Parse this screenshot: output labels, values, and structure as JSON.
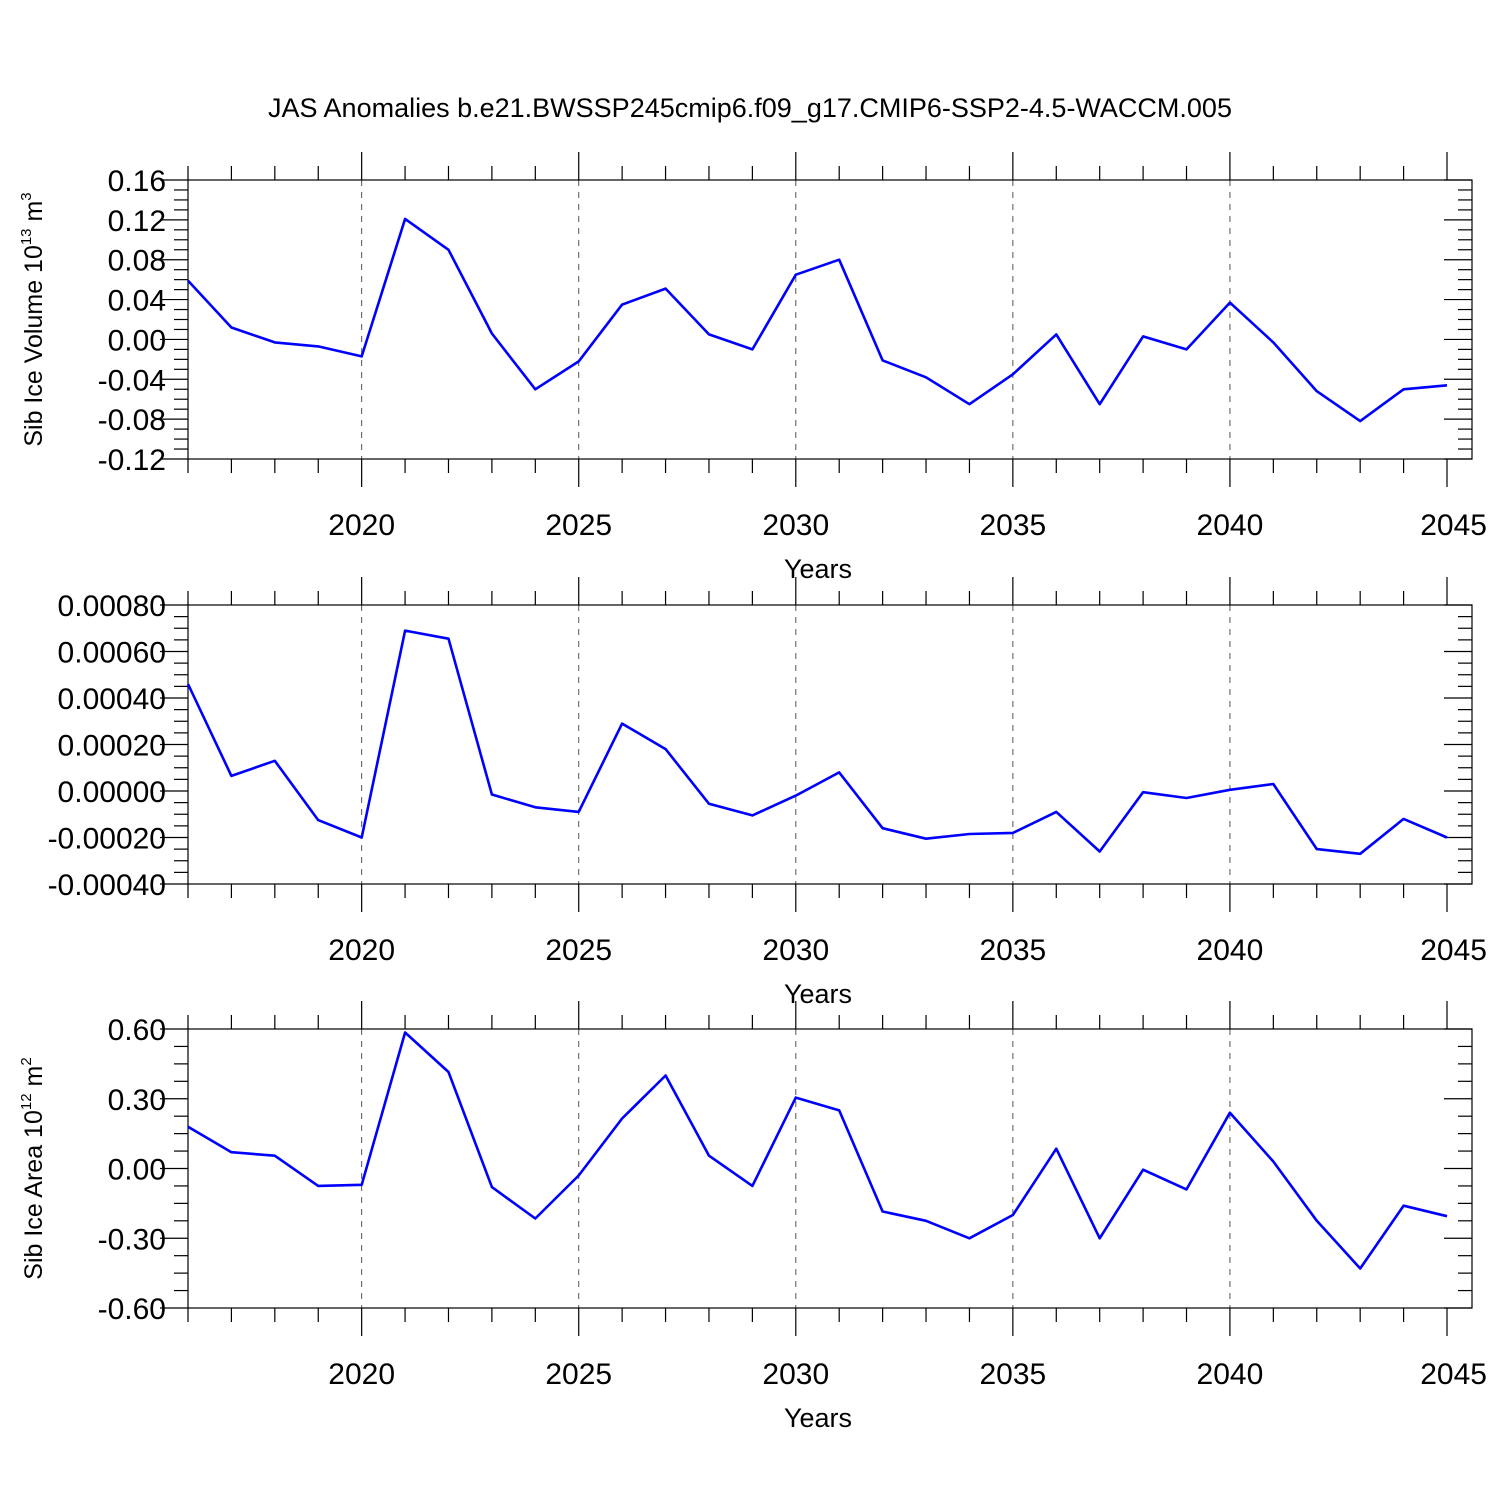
{
  "title": "JAS Anomalies b.e21.BWSSP245cmip6.f09_g17.CMIP6-SSP2-4.5-WACCM.005",
  "colors": {
    "line": "#0000ff",
    "grid": "#555555",
    "axis": "#000000"
  },
  "chart_data": [
    {
      "type": "line",
      "xlabel": "Years",
      "ylabel": "Sib Ice Volume 10",
      "ylabel_exp": "13",
      "ylabel_unit": " m",
      "ylabel_unit_exp": "3",
      "xlim": [
        2016,
        2045
      ],
      "ylim": [
        -0.12,
        0.16
      ],
      "x_ticks": [
        "2020",
        "2025",
        "2030",
        "2035",
        "2040",
        "2045"
      ],
      "y_ticks": [
        "0.16",
        "0.12",
        "0.08",
        "0.04",
        "0.00",
        "-0.04",
        "-0.08",
        "-0.12"
      ],
      "grid": "vertical dashed at major x ticks",
      "x": [
        2016,
        2017,
        2018,
        2019,
        2020,
        2021,
        2022,
        2023,
        2024,
        2025,
        2026,
        2027,
        2028,
        2029,
        2030,
        2031,
        2032,
        2033,
        2034,
        2035,
        2036,
        2037,
        2038,
        2039,
        2040,
        2041,
        2042,
        2043,
        2044,
        2045
      ],
      "values": [
        0.059,
        0.012,
        -0.003,
        -0.007,
        -0.017,
        0.121,
        0.09,
        0.006,
        -0.05,
        -0.022,
        0.035,
        0.051,
        0.005,
        -0.01,
        0.065,
        0.08,
        -0.021,
        -0.038,
        -0.065,
        -0.035,
        0.005,
        -0.065,
        0.003,
        -0.01,
        0.037,
        -0.003,
        -0.052,
        -0.082,
        -0.05,
        -0.046
      ]
    },
    {
      "type": "line",
      "xlabel": "Years",
      "xlim": [
        2016,
        2045
      ],
      "ylim": [
        -0.0004,
        0.0008
      ],
      "x_ticks": [
        "2020",
        "2025",
        "2030",
        "2035",
        "2040",
        "2045"
      ],
      "y_ticks": [
        "0.00080",
        "0.00060",
        "0.00040",
        "0.00020",
        "0.00000",
        "-0.00020",
        "-0.00040"
      ],
      "grid": "vertical dashed at major x ticks",
      "x": [
        2016,
        2017,
        2018,
        2019,
        2020,
        2021,
        2022,
        2023,
        2024,
        2025,
        2026,
        2027,
        2028,
        2029,
        2030,
        2031,
        2032,
        2033,
        2034,
        2035,
        2036,
        2037,
        2038,
        2039,
        2040,
        2041,
        2042,
        2043,
        2044,
        2045
      ],
      "values": [
        0.00046,
        6.5e-05,
        0.00013,
        -0.000125,
        -0.0002,
        0.00069,
        0.000655,
        -1.5e-05,
        -7e-05,
        -9e-05,
        0.00029,
        0.00018,
        -5.5e-05,
        -0.000105,
        -2e-05,
        8e-05,
        -0.00016,
        -0.000205,
        -0.000185,
        -0.00018,
        -9e-05,
        -0.00026,
        -5e-06,
        -3e-05,
        5e-06,
        3e-05,
        -0.00025,
        -0.00027,
        -0.00012,
        -0.0002
      ]
    },
    {
      "type": "line",
      "xlabel": "Years",
      "ylabel": "Sib Ice Area 10",
      "ylabel_exp": "12",
      "ylabel_unit": " m",
      "ylabel_unit_exp": "2",
      "xlim": [
        2016,
        2045
      ],
      "ylim": [
        -0.6,
        0.6
      ],
      "x_ticks": [
        "2020",
        "2025",
        "2030",
        "2035",
        "2040",
        "2045"
      ],
      "y_ticks": [
        "0.60",
        "0.30",
        "0.00",
        "-0.30",
        "-0.60"
      ],
      "grid": "vertical dashed at major x ticks",
      "x": [
        2016,
        2017,
        2018,
        2019,
        2020,
        2021,
        2022,
        2023,
        2024,
        2025,
        2026,
        2027,
        2028,
        2029,
        2030,
        2031,
        2032,
        2033,
        2034,
        2035,
        2036,
        2037,
        2038,
        2039,
        2040,
        2041,
        2042,
        2043,
        2044,
        2045
      ],
      "values": [
        0.18,
        0.07,
        0.055,
        -0.075,
        -0.07,
        0.585,
        0.415,
        -0.08,
        -0.215,
        -0.03,
        0.215,
        0.4,
        0.055,
        -0.075,
        0.305,
        0.25,
        -0.185,
        -0.225,
        -0.3,
        -0.2,
        0.085,
        -0.3,
        -0.005,
        -0.09,
        0.24,
        0.03,
        -0.225,
        -0.43,
        -0.16,
        -0.205
      ]
    }
  ]
}
